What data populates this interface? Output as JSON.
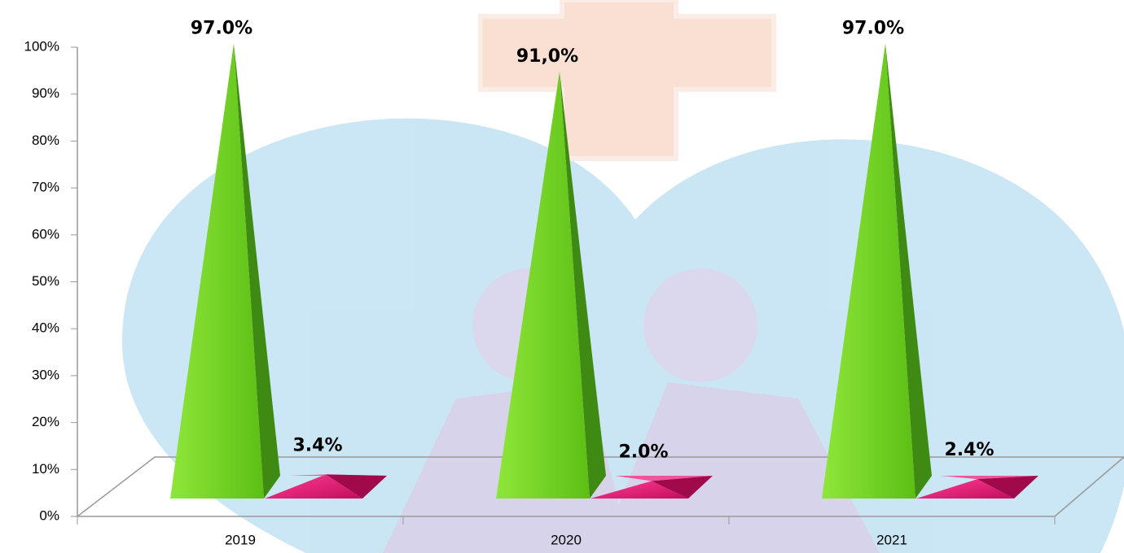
{
  "chart_data": {
    "type": "pyramid3d",
    "categories": [
      "2019",
      "2020",
      "2021"
    ],
    "series": [
      {
        "color": "#6fd41c",
        "values": [
          97,
          91,
          97
        ],
        "value_labels": [
          "97.0%",
          "91,0%",
          "97.0%"
        ]
      },
      {
        "color": "#e8106e",
        "values": [
          3.4,
          2.0,
          2.4
        ],
        "value_labels": [
          "3.4%",
          "2.0%",
          "2.4%"
        ]
      }
    ],
    "ylim": [
      0,
      100
    ],
    "yticks": [
      {
        "value": 0,
        "label": "0%"
      },
      {
        "value": 10,
        "label": "10%"
      },
      {
        "value": 20,
        "label": "20%"
      },
      {
        "value": 30,
        "label": "30%"
      },
      {
        "value": 40,
        "label": "40%"
      },
      {
        "value": 50,
        "label": "50%"
      },
      {
        "value": 60,
        "label": "60%"
      },
      {
        "value": 70,
        "label": "70%"
      },
      {
        "value": 80,
        "label": "80%"
      },
      {
        "value": 90,
        "label": "90%"
      },
      {
        "value": 100,
        "label": "100%"
      }
    ]
  }
}
